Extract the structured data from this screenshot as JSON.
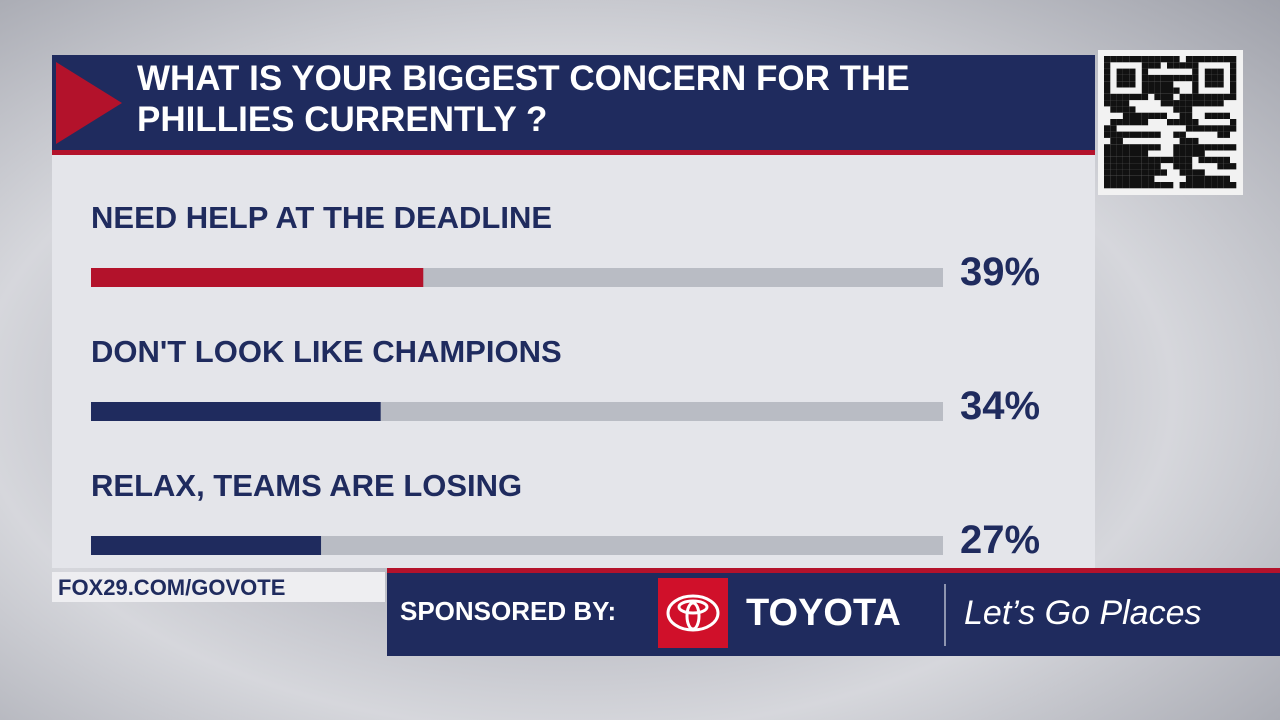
{
  "chart_data": {
    "type": "hbar",
    "title": "WHAT IS YOUR BIGGEST CONCERN FOR THE PHILLIES CURRENTLY ?",
    "categories": [
      "NEED HELP AT THE DEADLINE",
      "DON'T LOOK LIKE CHAMPIONS",
      "RELAX, TEAMS ARE LOSING"
    ],
    "values": [
      39,
      34,
      27
    ],
    "value_labels": [
      "39%",
      "34%",
      "27%"
    ],
    "colors": [
      "#b3122b",
      "#1f2b5e",
      "#1f2b5e"
    ],
    "track_color": "#b9bcc4",
    "xlim": [
      0,
      100
    ]
  },
  "footer": {
    "url": "FOX29.COM/GOVOTE",
    "sponsor": "SPONSORED BY:",
    "brand": "TOYOTA",
    "slogan": "Let’s Go Places"
  }
}
